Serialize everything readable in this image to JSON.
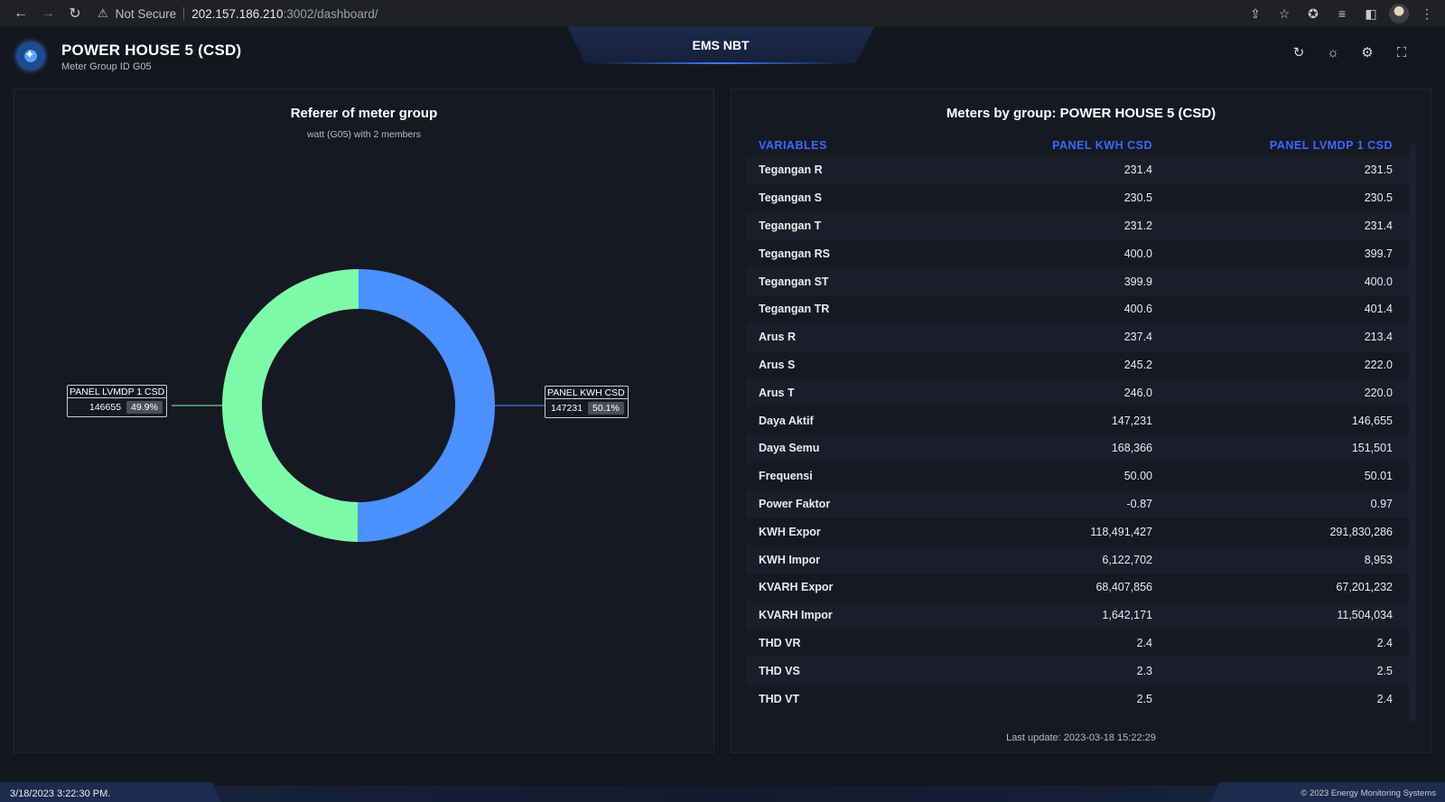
{
  "browser": {
    "security": "Not Secure",
    "url_host": "202.157.186.210",
    "url_path": ":3002/dashboard/"
  },
  "header": {
    "title": "POWER HOUSE 5 (CSD)",
    "subtitle": "Meter Group ID G05",
    "center_title": "EMS NBT"
  },
  "left_panel": {
    "title": "Referer of meter group",
    "subtitle": "watt (G05) with 2 members"
  },
  "chart_data": {
    "type": "pie",
    "title": "Referer of meter group",
    "subtitle": "watt (G05) with 2 members",
    "categories": [
      "PANEL KWH CSD",
      "PANEL LVMDP 1 CSD"
    ],
    "values": [
      147231,
      146655
    ],
    "percent_labels": [
      "50.1%",
      "49.9%"
    ],
    "value_labels": [
      "147231",
      "146655"
    ],
    "colors": [
      "#4a90ff",
      "#7dfaa8"
    ],
    "donut": true
  },
  "right_panel": {
    "title": "Meters by group: POWER HOUSE 5 (CSD)",
    "columns": [
      "VARIABLES",
      "PANEL KWH CSD",
      "PANEL LVMDP 1 CSD"
    ],
    "rows": [
      [
        "Tegangan R",
        "231.4",
        "231.5"
      ],
      [
        "Tegangan S",
        "230.5",
        "230.5"
      ],
      [
        "Tegangan T",
        "231.2",
        "231.4"
      ],
      [
        "Tegangan RS",
        "400.0",
        "399.7"
      ],
      [
        "Tegangan ST",
        "399.9",
        "400.0"
      ],
      [
        "Tegangan TR",
        "400.6",
        "401.4"
      ],
      [
        "Arus R",
        "237.4",
        "213.4"
      ],
      [
        "Arus S",
        "245.2",
        "222.0"
      ],
      [
        "Arus T",
        "246.0",
        "220.0"
      ],
      [
        "Daya Aktif",
        "147,231",
        "146,655"
      ],
      [
        "Daya Semu",
        "168,366",
        "151,501"
      ],
      [
        "Frequensi",
        "50.00",
        "50.01"
      ],
      [
        "Power Faktor",
        "-0.87",
        "0.97"
      ],
      [
        "KWH Expor",
        "118,491,427",
        "291,830,286"
      ],
      [
        "KWH Impor",
        "6,122,702",
        "8,953"
      ],
      [
        "KVARH Expor",
        "68,407,856",
        "67,201,232"
      ],
      [
        "KVARH Impor",
        "1,642,171",
        "11,504,034"
      ],
      [
        "THD VR",
        "2.4",
        "2.4"
      ],
      [
        "THD VS",
        "2.3",
        "2.5"
      ],
      [
        "THD VT",
        "2.5",
        "2.4"
      ]
    ],
    "last_update": "Last update: 2023-03-18 15:22:29"
  },
  "footer": {
    "datetime": "3/18/2023 3:22:30 PM.",
    "copyright": "© 2023 Energy Monitoring Systems"
  },
  "icons": {
    "refresh": "refresh-icon",
    "theme": "sun-icon",
    "settings": "gear-icon",
    "fullscreen": "fullscreen-icon"
  }
}
